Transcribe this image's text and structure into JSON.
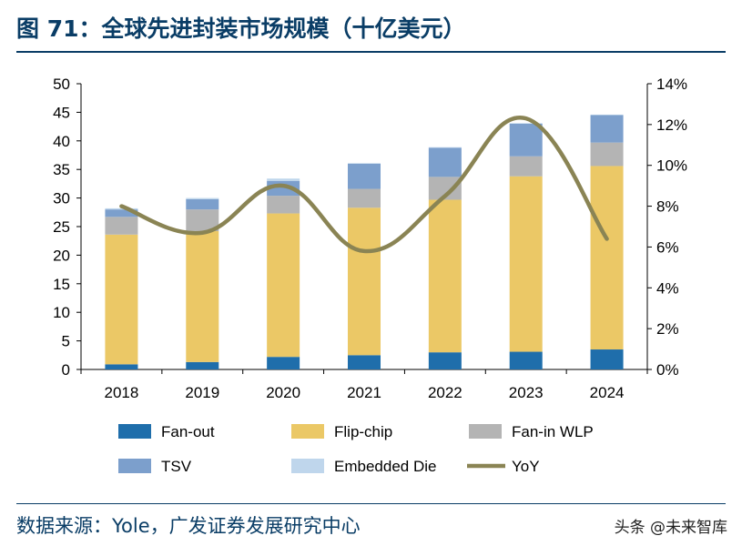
{
  "figure": {
    "title": "图 71：全球先进封装市场规模（十亿美元）",
    "source": "数据来源：Yole，广发证券发展研究中心",
    "watermark": "头条 @未来智库"
  },
  "colors": {
    "Fan-out": "#1f6eab",
    "Flip-chip": "#ebc866",
    "Fan-in WLP": "#b4b4b4",
    "TSV": "#7c9fcc",
    "Embedded Die": "#bfd6ec",
    "YoY": "#8a8454",
    "title": "#0a3d66"
  },
  "chart_data": {
    "type": "bar",
    "stacked": true,
    "categories": [
      "2018",
      "2019",
      "2020",
      "2021",
      "2022",
      "2023",
      "2024"
    ],
    "series": [
      {
        "name": "Fan-out",
        "values": [
          0.9,
          1.3,
          2.2,
          2.5,
          3.0,
          3.1,
          3.5
        ]
      },
      {
        "name": "Flip-chip",
        "values": [
          22.7,
          22.9,
          25.1,
          25.8,
          26.7,
          30.7,
          32.1
        ]
      },
      {
        "name": "Fan-in WLP",
        "values": [
          3.1,
          3.8,
          3.1,
          3.3,
          4.0,
          3.5,
          4.1
        ]
      },
      {
        "name": "TSV",
        "values": [
          1.3,
          1.8,
          2.6,
          4.4,
          5.1,
          5.7,
          4.8
        ]
      },
      {
        "name": "Embedded Die",
        "values": [
          0.2,
          0.2,
          0.4,
          0.1,
          0.1,
          0.1,
          0.1
        ]
      }
    ],
    "line_series": {
      "name": "YoY",
      "axis": "right",
      "values": [
        8.0,
        6.7,
        9.0,
        5.8,
        8.5,
        12.3,
        6.4
      ]
    },
    "y_left": {
      "min": 0,
      "max": 50,
      "ticks": [
        "0",
        "5",
        "10",
        "15",
        "20",
        "25",
        "30",
        "35",
        "40",
        "45",
        "50"
      ]
    },
    "y_right": {
      "min": 0,
      "max": 14,
      "ticks": [
        "0%",
        "2%",
        "4%",
        "6%",
        "8%",
        "10%",
        "12%",
        "14%"
      ]
    },
    "legend": {
      "placement": "bottom",
      "items": [
        "Fan-out",
        "Flip-chip",
        "Fan-in WLP",
        "TSV",
        "Embedded Die",
        "YoY"
      ]
    },
    "grid": false
  }
}
